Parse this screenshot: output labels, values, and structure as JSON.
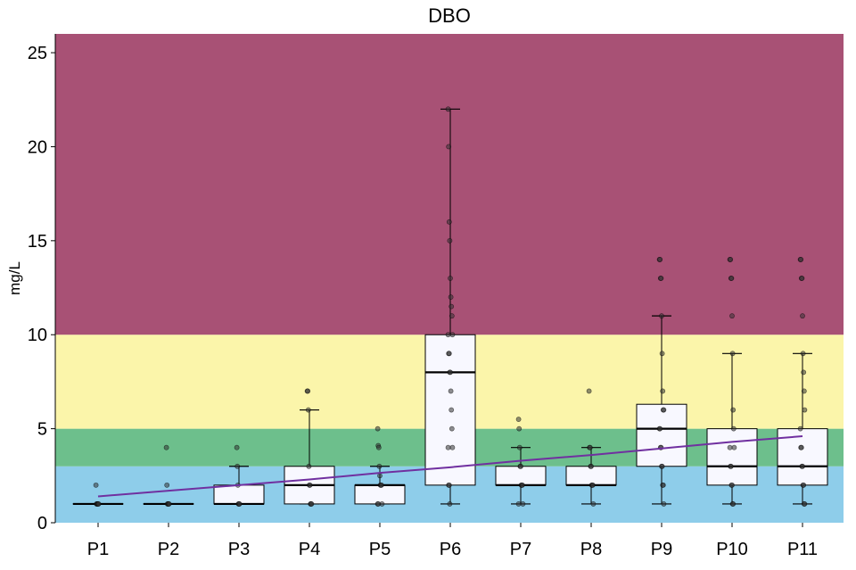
{
  "chart_data": {
    "type": "box",
    "title": "DBO",
    "ylabel": "mg/L",
    "xlabel": "",
    "ylim": [
      0,
      26
    ],
    "yticks": [
      0,
      5,
      10,
      15,
      20,
      25
    ],
    "categories": [
      "P1",
      "P2",
      "P3",
      "P4",
      "P5",
      "P6",
      "P7",
      "P8",
      "P9",
      "P10",
      "P11"
    ],
    "bands": [
      {
        "from": 0,
        "to": 3,
        "color": "#8ecdea"
      },
      {
        "from": 3,
        "to": 5,
        "color": "#6dbf8c"
      },
      {
        "from": 5,
        "to": 10,
        "color": "#fbf5aa"
      },
      {
        "from": 10,
        "to": 26,
        "color": "#a85175"
      }
    ],
    "boxes": [
      {
        "q1": 1,
        "median": 1,
        "q3": 1,
        "whisker_low": 1,
        "whisker_high": 1
      },
      {
        "q1": 1,
        "median": 1,
        "q3": 1,
        "whisker_low": 1,
        "whisker_high": 1
      },
      {
        "q1": 1,
        "median": 1,
        "q3": 2,
        "whisker_low": 1,
        "whisker_high": 3
      },
      {
        "q1": 1,
        "median": 2,
        "q3": 3,
        "whisker_low": 1,
        "whisker_high": 6
      },
      {
        "q1": 1,
        "median": 2,
        "q3": 2,
        "whisker_low": 1,
        "whisker_high": 3
      },
      {
        "q1": 2,
        "median": 8,
        "q3": 10,
        "whisker_low": 1,
        "whisker_high": 22
      },
      {
        "q1": 2,
        "median": 2,
        "q3": 3,
        "whisker_low": 1,
        "whisker_high": 4
      },
      {
        "q1": 2,
        "median": 2,
        "q3": 3,
        "whisker_low": 1,
        "whisker_high": 4
      },
      {
        "q1": 3,
        "median": 5,
        "q3": 6.3,
        "whisker_low": 1,
        "whisker_high": 11
      },
      {
        "q1": 2,
        "median": 3,
        "q3": 5,
        "whisker_low": 1,
        "whisker_high": 9
      },
      {
        "q1": 2,
        "median": 3,
        "q3": 5,
        "whisker_low": 1,
        "whisker_high": 9
      }
    ],
    "points": [
      [
        2,
        1,
        1,
        1,
        1,
        1
      ],
      [
        4,
        2,
        1,
        1,
        1,
        1
      ],
      [
        4,
        3,
        2,
        1,
        1,
        1
      ],
      [
        7,
        7,
        6,
        3,
        2,
        2,
        1,
        1,
        1
      ],
      [
        5,
        4.1,
        4,
        3,
        2.5,
        2,
        2,
        2,
        1,
        1,
        1
      ],
      [
        22,
        20,
        16,
        15,
        13,
        12,
        11.5,
        11,
        10,
        10,
        9,
        9,
        8,
        8,
        7,
        6,
        5,
        4,
        4,
        2,
        2,
        1
      ],
      [
        5.5,
        5,
        4,
        3,
        3,
        2,
        2,
        2,
        1,
        1
      ],
      [
        7,
        4,
        4,
        3,
        3,
        2,
        2,
        2,
        1
      ],
      [
        14,
        14,
        13,
        13,
        11,
        9,
        7,
        6,
        6,
        5,
        5,
        4,
        4,
        3,
        3,
        2,
        2,
        1
      ],
      [
        14,
        14,
        13,
        13,
        11,
        9,
        6,
        5,
        4,
        4,
        3,
        3,
        2,
        2,
        1,
        1
      ],
      [
        14,
        14,
        13,
        13,
        11,
        9,
        8,
        7,
        6,
        5,
        4,
        4,
        3,
        3,
        2,
        2,
        1,
        1
      ]
    ],
    "trend": {
      "color": "#7030a0",
      "values": [
        1.4,
        1.7,
        2.0,
        2.3,
        2.65,
        2.95,
        3.3,
        3.6,
        3.95,
        4.3,
        4.6
      ]
    },
    "box_fill": "#f8f8ff",
    "point_color": "#333333"
  }
}
